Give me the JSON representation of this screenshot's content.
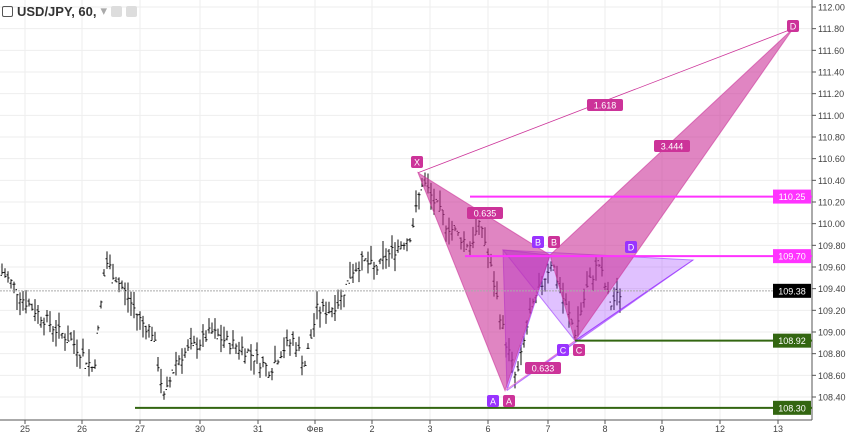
{
  "header": {
    "symbol": "USD/JPY, 60,",
    "dropdown": "▾"
  },
  "colors": {
    "pattern1": "#cc3399",
    "pattern2": "#9933ff",
    "hline_magenta": "#ff33ff",
    "hline_green": "#336611",
    "last_price": "#000000"
  },
  "chart_data": {
    "type": "ohlc",
    "ylim": [
      108.3,
      112.05
    ],
    "y_ticks": [
      108.4,
      108.6,
      108.8,
      109.0,
      109.2,
      109.4,
      109.6,
      109.8,
      110.0,
      110.2,
      110.4,
      110.6,
      110.8,
      111.0,
      111.2,
      111.4,
      111.6,
      111.8,
      112.0
    ],
    "x_ticks": [
      "25",
      "26",
      "27",
      "30",
      "31",
      "Фев",
      "2",
      "3",
      "6",
      "7",
      "8",
      "9",
      "12",
      "13"
    ],
    "close_path": [
      109.57,
      109.45,
      109.3,
      109.2,
      109.1,
      109.0,
      108.93,
      108.8,
      108.65,
      109.66,
      109.48,
      109.3,
      109.1,
      109.0,
      108.37,
      108.74,
      108.83,
      108.9,
      109.0,
      108.93,
      108.88,
      108.83,
      108.74,
      108.65,
      108.83,
      108.93,
      108.7,
      109.2,
      109.2,
      109.3,
      109.57,
      109.66,
      109.57,
      109.7,
      109.8,
      109.9,
      110.4,
      110.2,
      110.0,
      109.9,
      109.8,
      110.0,
      109.5,
      108.95,
      108.55,
      109.1,
      109.4,
      109.66,
      109.3,
      109.0,
      109.4,
      109.64,
      109.25,
      109.38
    ],
    "last_price": "109.38",
    "horizontal_levels": [
      {
        "value": "110.25",
        "color": "magenta"
      },
      {
        "value": "109.70",
        "color": "magenta"
      },
      {
        "value": "108.92",
        "color": "green"
      },
      {
        "value": "108.30",
        "color": "green"
      }
    ],
    "pattern": {
      "points": {
        "X": 110.47,
        "A": 108.46,
        "B": 109.71,
        "C": 108.92,
        "D": 111.8
      },
      "labels": {
        "X": "X",
        "A": "A",
        "B": "B",
        "C": "C",
        "D": "D",
        "D2": "D"
      },
      "ratios": {
        "xb": "0.635",
        "ac": "0.633",
        "xd": "1.618",
        "bd": "3.444"
      }
    }
  }
}
